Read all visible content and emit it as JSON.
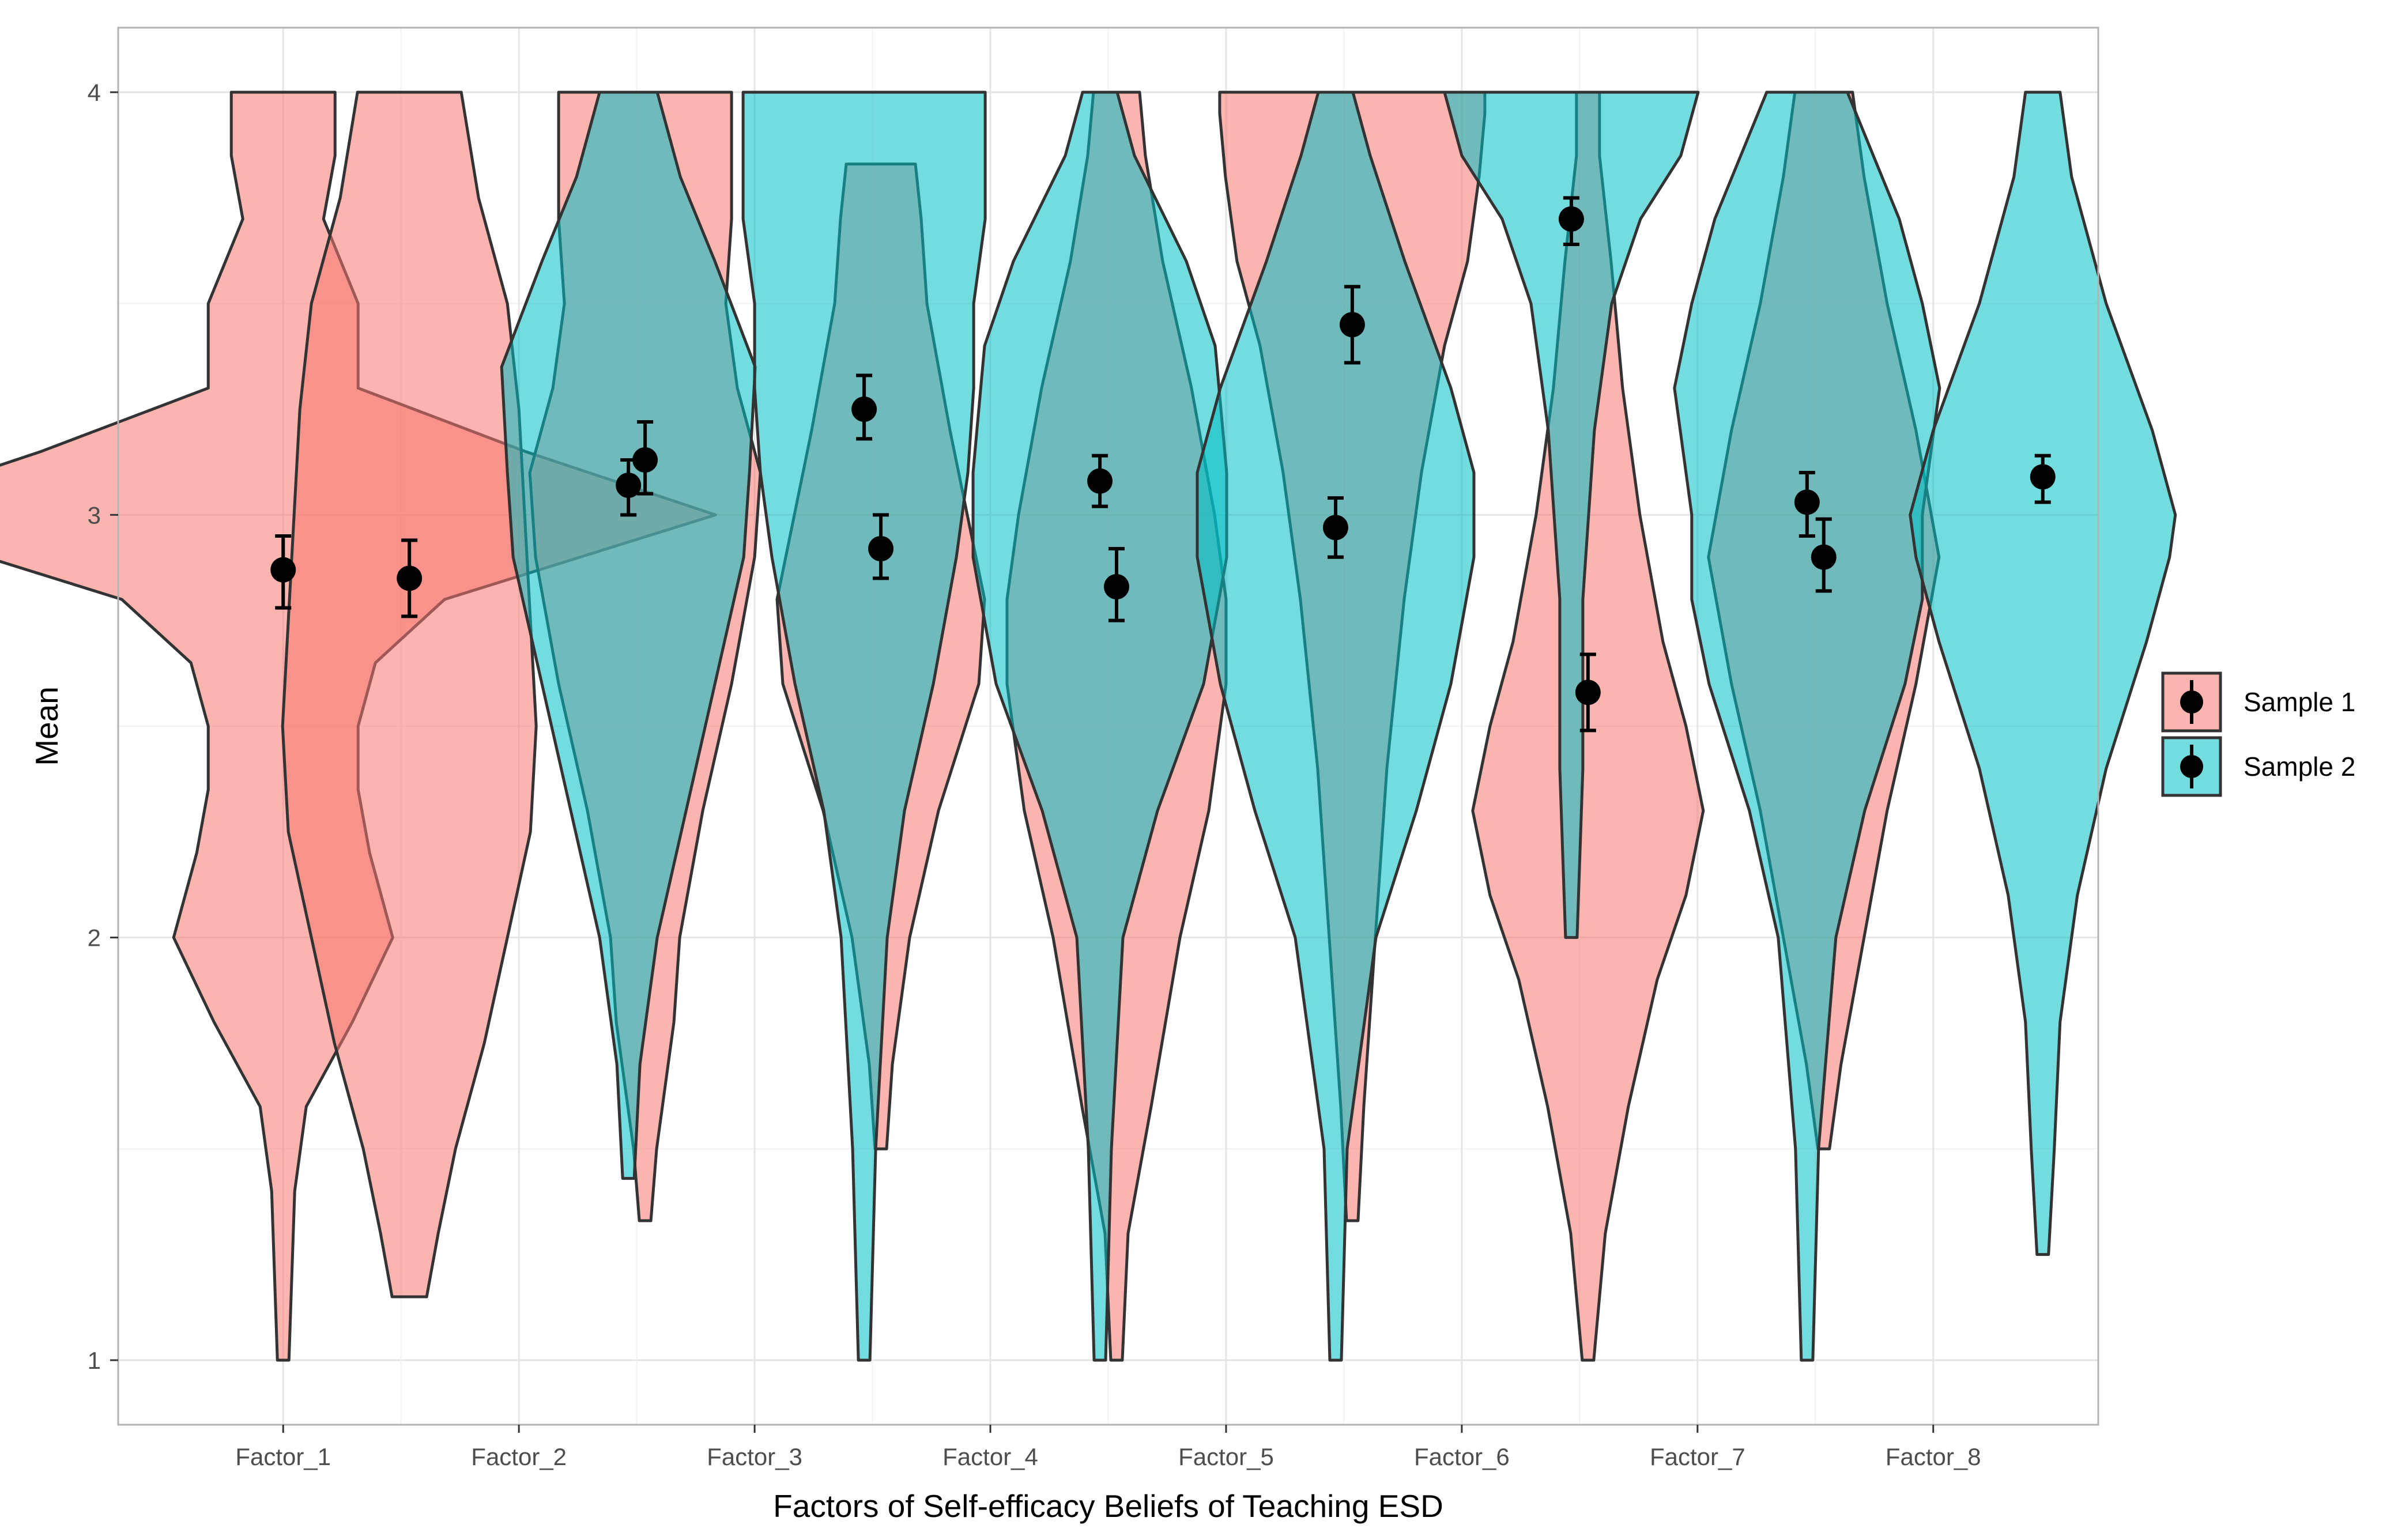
{
  "chart_data": {
    "type": "violin",
    "title": "",
    "xlabel": "Factors of Self-efficacy Beliefs of Teaching ESD",
    "ylabel": "Mean",
    "ylim": [
      0.85,
      4.0
    ],
    "yticks": [
      1,
      2,
      3,
      4
    ],
    "grid": true,
    "legend_position": "right",
    "categories": [
      "Factor_1",
      "Factor_2",
      "Factor_3",
      "Factor_4",
      "Factor_5",
      "Factor_6",
      "Factor_7",
      "Factor_8"
    ],
    "series": [
      {
        "name": "Sample 1",
        "color": "#F8766D",
        "means": [
          2.87,
          2.85,
          3.13,
          2.92,
          2.83,
          3.45,
          2.58,
          2.9
        ],
        "ci_low": [
          2.78,
          2.76,
          3.05,
          2.85,
          2.75,
          3.36,
          2.49,
          2.82
        ],
        "ci_high": [
          2.95,
          2.94,
          3.22,
          3.0,
          2.92,
          3.54,
          2.67,
          2.99
        ],
        "violins": [
          {
            "y": [
              1.0,
              1.4,
              1.6,
              1.8,
              2.0,
              2.2,
              2.35,
              2.5,
              2.65,
              2.8,
              3.0,
              3.15,
              3.3,
              3.5,
              3.7,
              3.85,
              4.0
            ],
            "w": [
              0.01,
              0.02,
              0.04,
              0.12,
              0.19,
              0.15,
              0.13,
              0.13,
              0.16,
              0.28,
              0.75,
              0.42,
              0.13,
              0.13,
              0.07,
              0.09,
              0.09
            ]
          },
          {
            "y": [
              1.15,
              1.3,
              1.5,
              1.75,
              2.0,
              2.25,
              2.5,
              2.75,
              3.0,
              3.25,
              3.5,
              3.75,
              4.0
            ],
            "w": [
              0.03,
              0.05,
              0.08,
              0.13,
              0.17,
              0.21,
              0.22,
              0.21,
              0.2,
              0.19,
              0.17,
              0.12,
              0.09
            ]
          },
          {
            "y": [
              1.33,
              1.5,
              1.8,
              2.0,
              2.3,
              2.6,
              2.9,
              3.1,
              3.3,
              3.5,
              3.7,
              3.85,
              4.0
            ],
            "w": [
              0.01,
              0.02,
              0.05,
              0.06,
              0.1,
              0.15,
              0.19,
              0.2,
              0.16,
              0.14,
              0.15,
              0.15,
              0.15
            ]
          },
          {
            "y": [
              1.5,
              1.7,
              2.0,
              2.3,
              2.6,
              2.8,
              3.0,
              3.2,
              3.5,
              3.7,
              3.83
            ],
            "w": [
              0.01,
              0.02,
              0.05,
              0.1,
              0.17,
              0.18,
              0.15,
              0.12,
              0.08,
              0.07,
              0.06
            ]
          },
          {
            "y": [
              1.0,
              1.3,
              1.6,
              2.0,
              2.3,
              2.6,
              2.8,
              3.0,
              3.3,
              3.6,
              3.85,
              4.0
            ],
            "w": [
              0.01,
              0.02,
              0.06,
              0.11,
              0.16,
              0.19,
              0.19,
              0.17,
              0.13,
              0.08,
              0.05,
              0.04
            ]
          },
          {
            "y": [
              1.33,
              1.6,
              2.0,
              2.4,
              2.8,
              3.1,
              3.4,
              3.6,
              3.8,
              3.95,
              4.0
            ],
            "w": [
              0.01,
              0.02,
              0.04,
              0.06,
              0.09,
              0.12,
              0.16,
              0.2,
              0.22,
              0.23,
              0.23
            ]
          },
          {
            "y": [
              1.0,
              1.3,
              1.6,
              1.9,
              2.1,
              2.3,
              2.5,
              2.7,
              3.0,
              3.3,
              3.6,
              3.85,
              4.0
            ],
            "w": [
              0.01,
              0.03,
              0.07,
              0.12,
              0.17,
              0.2,
              0.17,
              0.13,
              0.09,
              0.06,
              0.04,
              0.02,
              0.02
            ]
          },
          {
            "y": [
              1.5,
              1.7,
              2.0,
              2.3,
              2.6,
              2.9,
              3.2,
              3.5,
              3.8,
              4.0
            ],
            "w": [
              0.01,
              0.03,
              0.07,
              0.11,
              0.16,
              0.2,
              0.16,
              0.11,
              0.07,
              0.05
            ]
          }
        ]
      },
      {
        "name": "Sample 2",
        "color": "#00BFC4",
        "means": [
          null,
          3.07,
          3.25,
          3.08,
          2.97,
          3.7,
          3.03,
          3.09
        ],
        "ci_low": [
          null,
          3.0,
          3.18,
          3.02,
          2.9,
          3.64,
          2.95,
          3.03
        ],
        "ci_high": [
          null,
          3.13,
          3.33,
          3.14,
          3.04,
          3.75,
          3.1,
          3.14
        ],
        "violins": [
          null,
          {
            "y": [
              1.43,
              1.7,
              2.0,
              2.3,
              2.6,
              2.9,
              3.1,
              3.35,
              3.6,
              3.8,
              4.0
            ],
            "w": [
              0.01,
              0.02,
              0.05,
              0.1,
              0.15,
              0.2,
              0.21,
              0.22,
              0.15,
              0.09,
              0.05
            ]
          },
          {
            "y": [
              1.0,
              1.5,
              2.0,
              2.3,
              2.6,
              2.9,
              3.1,
              3.3,
              3.5,
              3.7,
              4.0
            ],
            "w": [
              0.01,
              0.02,
              0.04,
              0.07,
              0.12,
              0.16,
              0.18,
              0.19,
              0.19,
              0.21,
              0.21
            ]
          },
          {
            "y": [
              1.0,
              1.5,
              2.0,
              2.3,
              2.6,
              2.9,
              3.1,
              3.4,
              3.6,
              3.85,
              4.0
            ],
            "w": [
              0.01,
              0.02,
              0.04,
              0.1,
              0.18,
              0.22,
              0.22,
              0.2,
              0.15,
              0.06,
              0.03
            ]
          },
          {
            "y": [
              1.0,
              1.5,
              2.0,
              2.3,
              2.6,
              2.9,
              3.1,
              3.3,
              3.6,
              3.85,
              4.0
            ],
            "w": [
              0.01,
              0.02,
              0.07,
              0.14,
              0.2,
              0.24,
              0.24,
              0.2,
              0.12,
              0.06,
              0.03
            ]
          },
          {
            "y": [
              2.0,
              2.4,
              2.8,
              3.2,
              3.5,
              3.7,
              3.85,
              4.0
            ],
            "w": [
              0.01,
              0.02,
              0.02,
              0.04,
              0.07,
              0.12,
              0.19,
              0.22
            ]
          },
          {
            "y": [
              1.0,
              1.5,
              2.0,
              2.3,
              2.6,
              2.8,
              3.0,
              3.3,
              3.5,
              3.7,
              3.9,
              4.0
            ],
            "w": [
              0.01,
              0.02,
              0.05,
              0.1,
              0.17,
              0.2,
              0.2,
              0.23,
              0.2,
              0.16,
              0.1,
              0.07
            ]
          },
          {
            "y": [
              1.25,
              1.5,
              1.8,
              2.1,
              2.4,
              2.7,
              2.9,
              3.0,
              3.2,
              3.5,
              3.8,
              4.0
            ],
            "w": [
              0.01,
              0.02,
              0.03,
              0.06,
              0.11,
              0.18,
              0.22,
              0.23,
              0.19,
              0.11,
              0.05,
              0.03
            ]
          }
        ]
      }
    ]
  }
}
